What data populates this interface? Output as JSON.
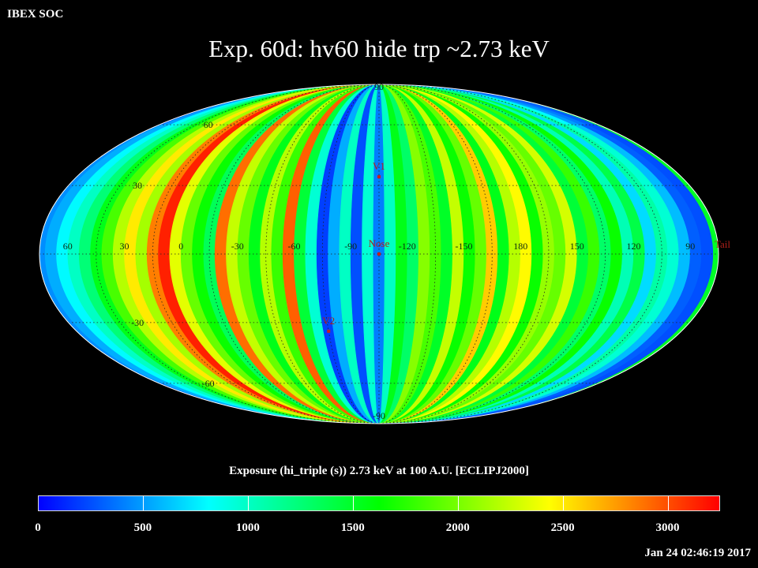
{
  "header": {
    "corner_label": "IBEX SOC",
    "title": "Exp.   60d: hv60 hide trp ~2.73 keV"
  },
  "colorbar": {
    "title": "Exposure (hi_triple (s))  2.73 keV at 100 A.U. [ECLIPJ2000]",
    "min": 0,
    "max": 3250,
    "ticks": [
      "0",
      "500",
      "1000",
      "1500",
      "2000",
      "2500",
      "3000"
    ],
    "colormap": [
      "#0000ff",
      "#0080ff",
      "#00ffff",
      "#00ff80",
      "#00ff00",
      "#80ff00",
      "#ffff00",
      "#ff8000",
      "#ff0000"
    ]
  },
  "footer": {
    "timestamp": "Jan 24 02:46:19 2017"
  },
  "chart_data": {
    "type": "heatmap",
    "projection": "mollweide",
    "title": "Exp.   60d: hv60 hide trp ~2.73 keV",
    "grid": true,
    "lon_labels": [
      "60",
      "30",
      "0",
      "-30",
      "-60",
      "-90",
      "-120",
      "-150",
      "180",
      "150",
      "120",
      "90"
    ],
    "lon_values": [
      60,
      30,
      0,
      -30,
      -60,
      -90,
      -120,
      -150,
      180,
      150,
      120,
      90
    ],
    "lat_labels": [
      "90",
      "60",
      "30",
      "-30",
      "-60",
      "-90"
    ],
    "lat_values": [
      90,
      60,
      30,
      -30,
      -60,
      -90
    ],
    "markers": [
      {
        "label": "V1",
        "lon": -105,
        "lat": 34
      },
      {
        "label": "Nose",
        "lon": -105,
        "lat": 0
      },
      {
        "label": "V2",
        "lon": -75,
        "lat": -34
      },
      {
        "label": "Tail",
        "lon": 75,
        "lat": 0
      }
    ],
    "value_range": [
      0,
      3250
    ],
    "strips": [
      {
        "lon_center": 75,
        "value": 450,
        "north": 300,
        "south": 350
      },
      {
        "lon_center": 69,
        "value": 550,
        "north": 500
      },
      {
        "lon_center": 63,
        "value": 800
      },
      {
        "lon_center": 57,
        "value": 1000
      },
      {
        "lon_center": 51,
        "value": 1250
      },
      {
        "lon_center": 45,
        "value": 1550
      },
      {
        "lon_center": 39,
        "value": 1850
      },
      {
        "lon_center": 33,
        "value": 2200
      },
      {
        "lon_center": 27,
        "value": 2500
      },
      {
        "lon_center": 21,
        "value": 2150
      },
      {
        "lon_center": 15,
        "value": 2850
      },
      {
        "lon_center": 9,
        "value": 3150
      },
      {
        "lon_center": 3,
        "value": 2350
      },
      {
        "lon_center": -3,
        "value": 1950
      },
      {
        "lon_center": -9,
        "value": 1650
      },
      {
        "lon_center": -15,
        "value": 1350
      },
      {
        "lon_center": -21,
        "value": 2900
      },
      {
        "lon_center": -27,
        "value": 2250
      },
      {
        "lon_center": -33,
        "value": 1950
      },
      {
        "lon_center": -39,
        "value": 1550
      },
      {
        "lon_center": -45,
        "value": 2200
      },
      {
        "lon_center": -51,
        "value": 1800
      },
      {
        "lon_center": -57,
        "value": 2950
      },
      {
        "lon_center": -63,
        "value": 1450
      },
      {
        "lon_center": -69,
        "value": 950
      },
      {
        "lon_center": -75,
        "value": 200
      },
      {
        "lon_center": -81,
        "value": 550
      },
      {
        "lon_center": -87,
        "value": 1000
      },
      {
        "lon_center": -93,
        "value": 250
      },
      {
        "lon_center": -99,
        "value": 950
      },
      {
        "lon_center": -105,
        "value": 400
      },
      {
        "lon_center": -111,
        "value": 1000
      },
      {
        "lon_center": -117,
        "value": 1550
      },
      {
        "lon_center": -123,
        "value": 1300
      },
      {
        "lon_center": -129,
        "value": 2050
      },
      {
        "lon_center": -135,
        "value": 1850
      },
      {
        "lon_center": -141,
        "value": 1500
      },
      {
        "lon_center": -147,
        "value": 2250
      },
      {
        "lon_center": -153,
        "value": 1650
      },
      {
        "lon_center": -159,
        "value": 1950
      },
      {
        "lon_center": -165,
        "value": 2600
      },
      {
        "lon_center": -171,
        "value": 1550
      },
      {
        "lon_center": -177,
        "value": 2200
      },
      {
        "lon_center": 177,
        "value": 2450
      },
      {
        "lon_center": 171,
        "value": 1650
      },
      {
        "lon_center": 165,
        "value": 2100
      },
      {
        "lon_center": 159,
        "value": 1950
      },
      {
        "lon_center": 153,
        "value": 2300
      },
      {
        "lon_center": 147,
        "value": 1450
      },
      {
        "lon_center": 141,
        "value": 1800
      },
      {
        "lon_center": 135,
        "value": 1300
      },
      {
        "lon_center": 129,
        "value": 1650
      },
      {
        "lon_center": 123,
        "value": 1050
      },
      {
        "lon_center": 117,
        "value": 1400
      },
      {
        "lon_center": 111,
        "value": 700
      },
      {
        "lon_center": 105,
        "value": 1100
      },
      {
        "lon_center": 99,
        "value": 950,
        "north": 800
      },
      {
        "lon_center": 93,
        "value": 600,
        "north": 500
      },
      {
        "lon_center": 87,
        "value": 300,
        "north": 400
      },
      {
        "lon_center": 81,
        "value": 250,
        "north": 300
      }
    ]
  }
}
